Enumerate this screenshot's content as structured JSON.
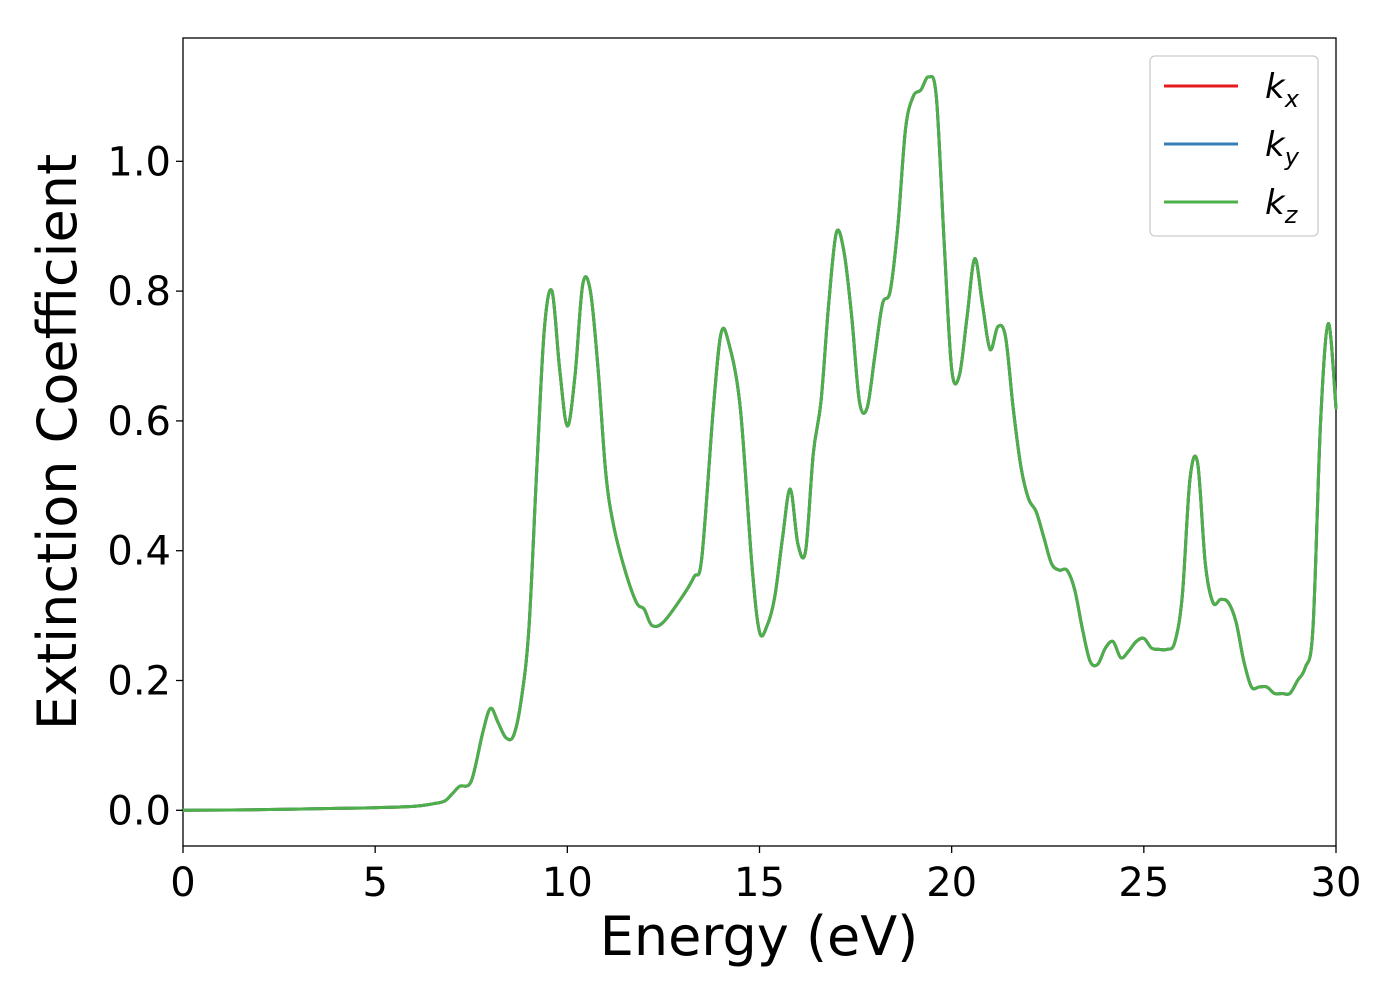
{
  "chart_data": {
    "type": "line",
    "xlabel": "Energy (eV)",
    "ylabel": "Extinction Coefficient",
    "xlim": [
      0,
      30
    ],
    "ylim": [
      -0.055,
      1.19
    ],
    "xticks": [
      0,
      5,
      10,
      15,
      20,
      25,
      30
    ],
    "xtick_labels": [
      "0",
      "5",
      "10",
      "15",
      "20",
      "25",
      "30"
    ],
    "yticks": [
      0.0,
      0.2,
      0.4,
      0.6,
      0.8,
      1.0
    ],
    "ytick_labels": [
      "0.0",
      "0.2",
      "0.4",
      "0.6",
      "0.8",
      "1.0"
    ],
    "grid": false,
    "legend_position": "top-right",
    "series": [
      {
        "name": "k_x",
        "label_base": "k",
        "label_sub": "x",
        "color": "#e41a1c",
        "x": [
          0,
          2,
          4,
          5,
          6,
          6.5,
          6.8,
          7.0,
          7.2,
          7.5,
          7.8,
          8.0,
          8.2,
          8.4,
          8.6,
          8.8,
          9.0,
          9.2,
          9.4,
          9.6,
          9.8,
          10.0,
          10.2,
          10.4,
          10.6,
          10.8,
          11.0,
          11.2,
          11.5,
          11.8,
          12.0,
          12.2,
          12.5,
          13.0,
          13.3,
          13.5,
          13.8,
          14.0,
          14.2,
          14.5,
          14.8,
          15.0,
          15.2,
          15.4,
          15.6,
          15.8,
          16.0,
          16.2,
          16.4,
          16.6,
          16.8,
          17.0,
          17.2,
          17.4,
          17.6,
          17.8,
          18.0,
          18.2,
          18.4,
          18.6,
          18.8,
          19.0,
          19.2,
          19.4,
          19.6,
          19.8,
          20.0,
          20.2,
          20.4,
          20.6,
          20.8,
          21.0,
          21.2,
          21.4,
          21.6,
          21.8,
          22.0,
          22.2,
          22.4,
          22.6,
          22.8,
          23.0,
          23.2,
          23.4,
          23.6,
          23.8,
          24.0,
          24.2,
          24.4,
          24.6,
          24.8,
          25.0,
          25.2,
          25.4,
          25.6,
          25.8,
          26.0,
          26.2,
          26.4,
          26.6,
          26.8,
          27.0,
          27.2,
          27.4,
          27.6,
          27.8,
          28.0,
          28.2,
          28.4,
          28.6,
          28.8,
          29.0,
          29.2,
          29.4,
          29.6,
          29.8,
          30.0
        ],
        "y": [
          0.0,
          0.001,
          0.003,
          0.004,
          0.006,
          0.01,
          0.014,
          0.025,
          0.037,
          0.045,
          0.12,
          0.157,
          0.135,
          0.112,
          0.115,
          0.17,
          0.28,
          0.52,
          0.74,
          0.8,
          0.68,
          0.592,
          0.67,
          0.81,
          0.8,
          0.68,
          0.52,
          0.44,
          0.37,
          0.32,
          0.31,
          0.285,
          0.29,
          0.33,
          0.36,
          0.39,
          0.62,
          0.735,
          0.72,
          0.62,
          0.38,
          0.275,
          0.285,
          0.33,
          0.42,
          0.495,
          0.41,
          0.4,
          0.55,
          0.63,
          0.78,
          0.89,
          0.86,
          0.76,
          0.63,
          0.62,
          0.7,
          0.78,
          0.8,
          0.9,
          1.05,
          1.1,
          1.11,
          1.13,
          1.1,
          0.88,
          0.68,
          0.67,
          0.76,
          0.85,
          0.78,
          0.71,
          0.745,
          0.73,
          0.62,
          0.53,
          0.48,
          0.46,
          0.42,
          0.38,
          0.37,
          0.37,
          0.34,
          0.28,
          0.23,
          0.225,
          0.25,
          0.26,
          0.235,
          0.245,
          0.26,
          0.265,
          0.25,
          0.248,
          0.248,
          0.258,
          0.33,
          0.51,
          0.535,
          0.38,
          0.32,
          0.325,
          0.32,
          0.29,
          0.23,
          0.19,
          0.19,
          0.19,
          0.18,
          0.18,
          0.18,
          0.2,
          0.22,
          0.28,
          0.6,
          0.75,
          0.62
        ]
      },
      {
        "name": "k_y",
        "label_base": "k",
        "label_sub": "y",
        "color": "#377eb8",
        "x": [
          0,
          2,
          4,
          5,
          6,
          6.5,
          6.8,
          7.0,
          7.2,
          7.5,
          7.8,
          8.0,
          8.2,
          8.4,
          8.6,
          8.8,
          9.0,
          9.2,
          9.4,
          9.6,
          9.8,
          10.0,
          10.2,
          10.4,
          10.6,
          10.8,
          11.0,
          11.2,
          11.5,
          11.8,
          12.0,
          12.2,
          12.5,
          13.0,
          13.3,
          13.5,
          13.8,
          14.0,
          14.2,
          14.5,
          14.8,
          15.0,
          15.2,
          15.4,
          15.6,
          15.8,
          16.0,
          16.2,
          16.4,
          16.6,
          16.8,
          17.0,
          17.2,
          17.4,
          17.6,
          17.8,
          18.0,
          18.2,
          18.4,
          18.6,
          18.8,
          19.0,
          19.2,
          19.4,
          19.6,
          19.8,
          20.0,
          20.2,
          20.4,
          20.6,
          20.8,
          21.0,
          21.2,
          21.4,
          21.6,
          21.8,
          22.0,
          22.2,
          22.4,
          22.6,
          22.8,
          23.0,
          23.2,
          23.4,
          23.6,
          23.8,
          24.0,
          24.2,
          24.4,
          24.6,
          24.8,
          25.0,
          25.2,
          25.4,
          25.6,
          25.8,
          26.0,
          26.2,
          26.4,
          26.6,
          26.8,
          27.0,
          27.2,
          27.4,
          27.6,
          27.8,
          28.0,
          28.2,
          28.4,
          28.6,
          28.8,
          29.0,
          29.2,
          29.4,
          29.6,
          29.8,
          30.0
        ],
        "y": [
          0.0,
          0.001,
          0.003,
          0.004,
          0.006,
          0.01,
          0.014,
          0.025,
          0.037,
          0.045,
          0.12,
          0.157,
          0.135,
          0.112,
          0.115,
          0.17,
          0.28,
          0.52,
          0.74,
          0.8,
          0.68,
          0.592,
          0.67,
          0.81,
          0.8,
          0.68,
          0.52,
          0.44,
          0.37,
          0.32,
          0.31,
          0.285,
          0.29,
          0.33,
          0.36,
          0.39,
          0.62,
          0.735,
          0.72,
          0.62,
          0.38,
          0.275,
          0.285,
          0.33,
          0.42,
          0.495,
          0.41,
          0.4,
          0.55,
          0.63,
          0.78,
          0.89,
          0.86,
          0.76,
          0.63,
          0.62,
          0.7,
          0.78,
          0.8,
          0.9,
          1.05,
          1.1,
          1.11,
          1.13,
          1.1,
          0.88,
          0.68,
          0.67,
          0.76,
          0.85,
          0.78,
          0.71,
          0.745,
          0.73,
          0.62,
          0.53,
          0.48,
          0.46,
          0.42,
          0.38,
          0.37,
          0.37,
          0.34,
          0.28,
          0.23,
          0.225,
          0.25,
          0.26,
          0.235,
          0.245,
          0.26,
          0.265,
          0.25,
          0.248,
          0.248,
          0.258,
          0.33,
          0.51,
          0.535,
          0.38,
          0.32,
          0.325,
          0.32,
          0.29,
          0.23,
          0.19,
          0.19,
          0.19,
          0.18,
          0.18,
          0.18,
          0.2,
          0.22,
          0.28,
          0.6,
          0.75,
          0.62
        ]
      },
      {
        "name": "k_z",
        "label_base": "k",
        "label_sub": "z",
        "color": "#4daf4a",
        "x": [
          0,
          2,
          4,
          5,
          6,
          6.5,
          6.8,
          7.0,
          7.2,
          7.5,
          7.8,
          8.0,
          8.2,
          8.4,
          8.6,
          8.8,
          9.0,
          9.2,
          9.4,
          9.6,
          9.8,
          10.0,
          10.2,
          10.4,
          10.6,
          10.8,
          11.0,
          11.2,
          11.5,
          11.8,
          12.0,
          12.2,
          12.5,
          13.0,
          13.3,
          13.5,
          13.8,
          14.0,
          14.2,
          14.5,
          14.8,
          15.0,
          15.2,
          15.4,
          15.6,
          15.8,
          16.0,
          16.2,
          16.4,
          16.6,
          16.8,
          17.0,
          17.2,
          17.4,
          17.6,
          17.8,
          18.0,
          18.2,
          18.4,
          18.6,
          18.8,
          19.0,
          19.2,
          19.4,
          19.6,
          19.8,
          20.0,
          20.2,
          20.4,
          20.6,
          20.8,
          21.0,
          21.2,
          21.4,
          21.6,
          21.8,
          22.0,
          22.2,
          22.4,
          22.6,
          22.8,
          23.0,
          23.2,
          23.4,
          23.6,
          23.8,
          24.0,
          24.2,
          24.4,
          24.6,
          24.8,
          25.0,
          25.2,
          25.4,
          25.6,
          25.8,
          26.0,
          26.2,
          26.4,
          26.6,
          26.8,
          27.0,
          27.2,
          27.4,
          27.6,
          27.8,
          28.0,
          28.2,
          28.4,
          28.6,
          28.8,
          29.0,
          29.2,
          29.4,
          29.6,
          29.8,
          30.0
        ],
        "y": [
          0.0,
          0.001,
          0.003,
          0.004,
          0.006,
          0.01,
          0.014,
          0.025,
          0.037,
          0.045,
          0.12,
          0.157,
          0.135,
          0.112,
          0.115,
          0.17,
          0.28,
          0.52,
          0.74,
          0.8,
          0.68,
          0.592,
          0.67,
          0.81,
          0.8,
          0.68,
          0.52,
          0.44,
          0.37,
          0.32,
          0.31,
          0.285,
          0.29,
          0.33,
          0.36,
          0.39,
          0.62,
          0.735,
          0.72,
          0.62,
          0.38,
          0.275,
          0.285,
          0.33,
          0.42,
          0.495,
          0.41,
          0.4,
          0.55,
          0.63,
          0.78,
          0.89,
          0.86,
          0.76,
          0.63,
          0.62,
          0.7,
          0.78,
          0.8,
          0.9,
          1.05,
          1.1,
          1.11,
          1.13,
          1.1,
          0.88,
          0.68,
          0.67,
          0.76,
          0.85,
          0.78,
          0.71,
          0.745,
          0.73,
          0.62,
          0.53,
          0.48,
          0.46,
          0.42,
          0.38,
          0.37,
          0.37,
          0.34,
          0.28,
          0.23,
          0.225,
          0.25,
          0.26,
          0.235,
          0.245,
          0.26,
          0.265,
          0.25,
          0.248,
          0.248,
          0.258,
          0.33,
          0.51,
          0.535,
          0.38,
          0.32,
          0.325,
          0.32,
          0.29,
          0.23,
          0.19,
          0.19,
          0.19,
          0.18,
          0.18,
          0.18,
          0.2,
          0.22,
          0.28,
          0.6,
          0.75,
          0.62
        ]
      }
    ]
  }
}
